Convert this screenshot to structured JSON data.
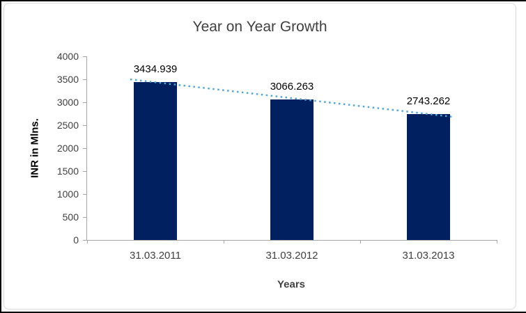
{
  "chart_data": {
    "type": "bar",
    "title": "Year on Year Growth",
    "xlabel": "Years",
    "ylabel": "INR in Mlns.",
    "categories": [
      "31.03.2011",
      "31.03.2012",
      "31.03.2013"
    ],
    "values": [
      3434.939,
      3066.263,
      2743.262
    ],
    "data_labels": [
      "3434.939",
      "3066.263",
      "2743.262"
    ],
    "ylim": [
      0,
      4000
    ],
    "ytick_step": 500,
    "ytick_labels": [
      "0",
      "500",
      "1000",
      "1500",
      "2000",
      "2500",
      "3000",
      "3500",
      "4000"
    ],
    "grid": false,
    "legend": false,
    "bar_color": "#002060",
    "axis_color": "#A6A6A6",
    "title_color": "#404040",
    "trendline": {
      "type": "linear",
      "style": "dotted",
      "color": "#4FA7DA"
    }
  }
}
